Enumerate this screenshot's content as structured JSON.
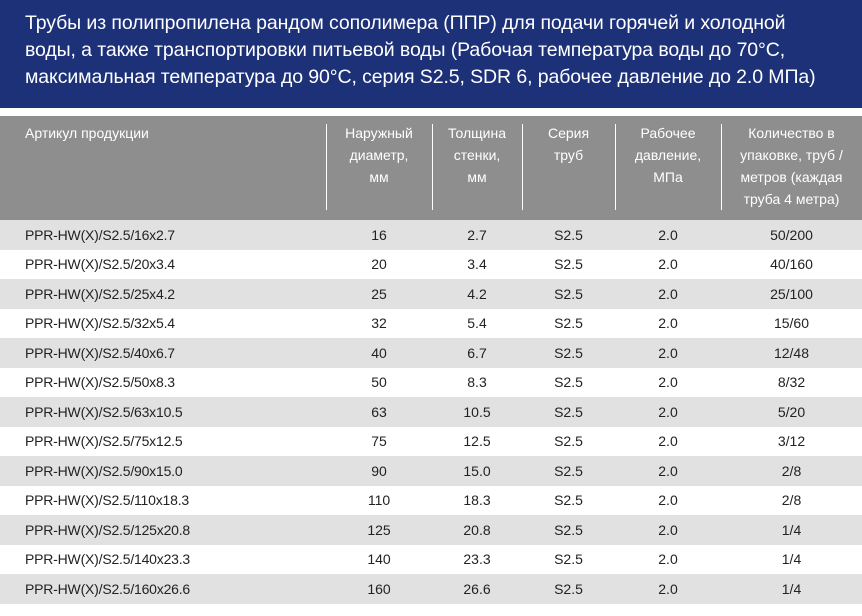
{
  "title": {
    "lines": [
      "Трубы из полипропилена рандом сополимера (ППР) для подачи горячей и холодной",
      "воды, а также транспортировки питьевой воды (Рабочая температура воды до 70°С,",
      "максимальная температура до 90°С, серия S2.5, SDR 6, рабочее давление до 2.0 МПа)"
    ]
  },
  "colors": {
    "title_bg": "#1d3179",
    "header_bg": "#8e8e8e",
    "row_odd": "#e1e1e1",
    "row_even": "#ffffff"
  },
  "table": {
    "headers": [
      {
        "lines": [
          "Артикул продукции"
        ]
      },
      {
        "lines": [
          "Наружный",
          "диаметр,",
          "мм"
        ]
      },
      {
        "lines": [
          "Толщина",
          "стенки,",
          "мм"
        ]
      },
      {
        "lines": [
          "Серия",
          "труб"
        ]
      },
      {
        "lines": [
          "Рабочее",
          "давление,",
          "МПа"
        ]
      },
      {
        "lines": [
          "Количество в",
          "упаковке, труб /",
          "метров (каждая",
          "труба 4 метра)"
        ]
      }
    ],
    "rows": [
      [
        "PPR-HW(X)/S2.5/16x2.7",
        "16",
        "2.7",
        "S2.5",
        "2.0",
        "50/200"
      ],
      [
        "PPR-HW(X)/S2.5/20x3.4",
        "20",
        "3.4",
        "S2.5",
        "2.0",
        "40/160"
      ],
      [
        "PPR-HW(X)/S2.5/25x4.2",
        "25",
        "4.2",
        "S2.5",
        "2.0",
        "25/100"
      ],
      [
        "PPR-HW(X)/S2.5/32x5.4",
        "32",
        "5.4",
        "S2.5",
        "2.0",
        "15/60"
      ],
      [
        "PPR-HW(X)/S2.5/40x6.7",
        "40",
        "6.7",
        "S2.5",
        "2.0",
        "12/48"
      ],
      [
        "PPR-HW(X)/S2.5/50x8.3",
        "50",
        "8.3",
        "S2.5",
        "2.0",
        "8/32"
      ],
      [
        "PPR-HW(X)/S2.5/63x10.5",
        "63",
        "10.5",
        "S2.5",
        "2.0",
        "5/20"
      ],
      [
        "PPR-HW(X)/S2.5/75x12.5",
        "75",
        "12.5",
        "S2.5",
        "2.0",
        "3/12"
      ],
      [
        "PPR-HW(X)/S2.5/90x15.0",
        "90",
        "15.0",
        "S2.5",
        "2.0",
        "2/8"
      ],
      [
        "PPR-HW(X)/S2.5/110x18.3",
        "110",
        "18.3",
        "S2.5",
        "2.0",
        "2/8"
      ],
      [
        "PPR-HW(X)/S2.5/125x20.8",
        "125",
        "20.8",
        "S2.5",
        "2.0",
        "1/4"
      ],
      [
        "PPR-HW(X)/S2.5/140x23.3",
        "140",
        "23.3",
        "S2.5",
        "2.0",
        "1/4"
      ],
      [
        "PPR-HW(X)/S2.5/160x26.6",
        "160",
        "26.6",
        "S2.5",
        "2.0",
        "1/4"
      ]
    ]
  }
}
